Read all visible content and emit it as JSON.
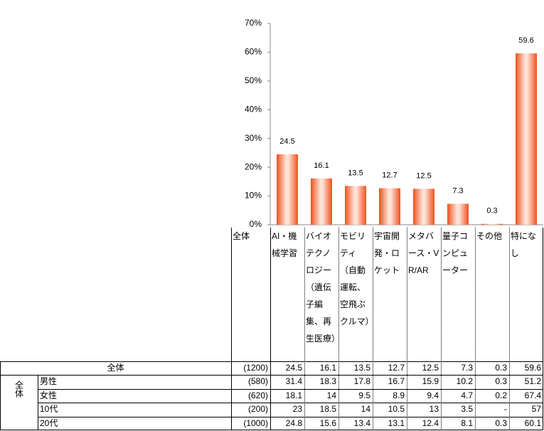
{
  "chart_data": {
    "type": "bar",
    "categories": [
      "AI・機械学習",
      "バイオテクノロジー（遺伝子編集、再生医療）",
      "モビリティ（自動運転、空飛ぶクルマ）",
      "宇宙開発・ロケット",
      "メタバース・VR/AR",
      "量子コンピューター",
      "その他",
      "特になし"
    ],
    "values": [
      24.5,
      16.1,
      13.5,
      12.7,
      12.5,
      7.3,
      0.3,
      59.6
    ],
    "color": "#f0501e",
    "ylim": [
      0,
      70
    ],
    "yticks": [
      {
        "value": 0,
        "label": "0%"
      },
      {
        "value": 10,
        "label": "10%"
      },
      {
        "value": 20,
        "label": "20%"
      },
      {
        "value": 30,
        "label": "30%"
      },
      {
        "value": 40,
        "label": "40%"
      },
      {
        "value": 50,
        "label": "50%"
      },
      {
        "value": 60,
        "label": "60%"
      },
      {
        "value": 70,
        "label": "70%"
      }
    ]
  },
  "table": {
    "header_label": "全体",
    "total": {
      "label": "全体",
      "n": "(1200)"
    },
    "group_label": "全体",
    "rows": [
      {
        "label": "男性",
        "n": "(580)",
        "values": [
          31.4,
          18.3,
          17.8,
          16.7,
          15.9,
          10.2,
          0.3,
          51.2
        ]
      },
      {
        "label": "女性",
        "n": "(620)",
        "values": [
          18.1,
          14.0,
          9.5,
          8.9,
          9.4,
          4.7,
          0.2,
          67.4
        ]
      },
      {
        "label": "10代",
        "n": "(200)",
        "values": [
          23.0,
          18.5,
          14.0,
          10.5,
          13.0,
          3.5,
          "-",
          57.0
        ]
      },
      {
        "label": "20代",
        "n": "(1000)",
        "values": [
          24.8,
          15.6,
          13.4,
          13.1,
          12.4,
          8.1,
          0.3,
          60.1
        ]
      }
    ]
  }
}
